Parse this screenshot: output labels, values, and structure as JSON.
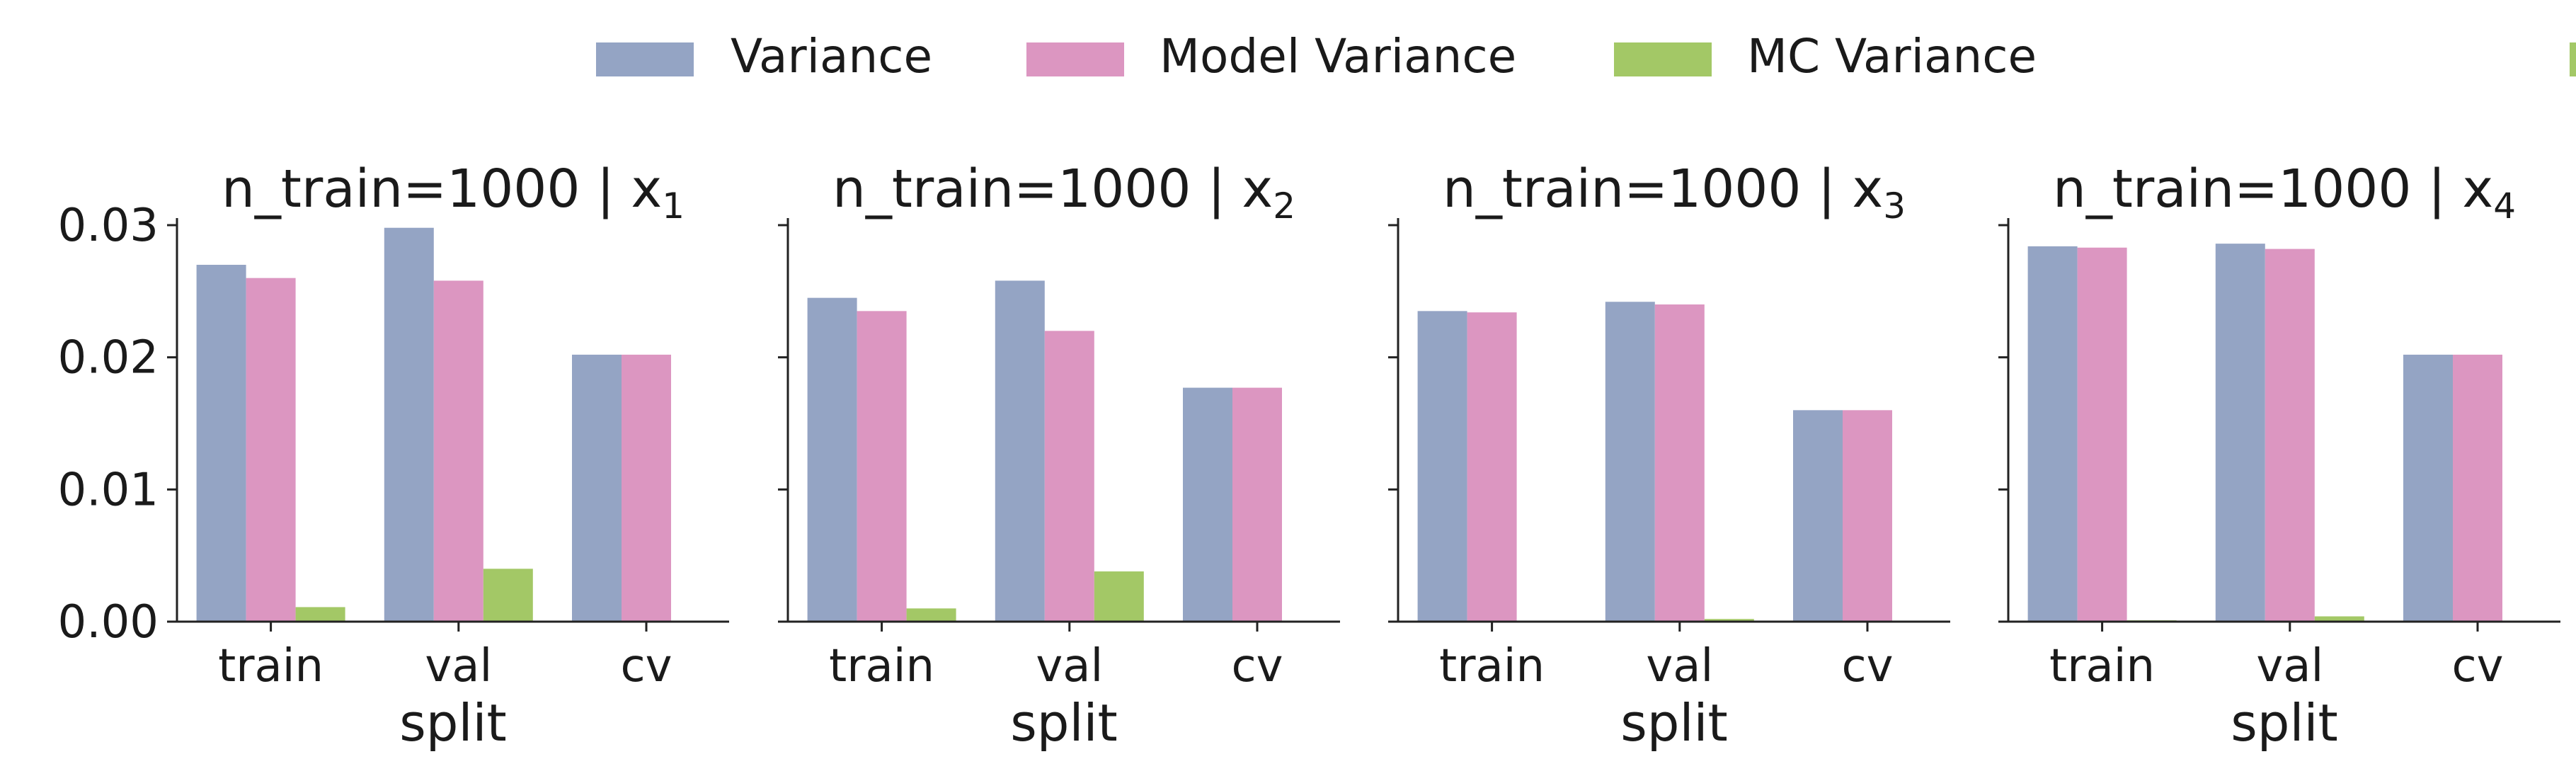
{
  "legend": {
    "placement": "top-center",
    "items": [
      {
        "label": "Variance",
        "color": "#94a4c4"
      },
      {
        "label": "Model Variance",
        "color": "#dc96c1"
      },
      {
        "label": "MC Variance",
        "color": "#a3c866"
      }
    ]
  },
  "chart_data": [
    {
      "type": "bar",
      "title": "n_train=1000 | x",
      "title_subscript": "1",
      "xlabel": "split",
      "ylabel": "",
      "categories": [
        "train",
        "val",
        "cv"
      ],
      "ylim": [
        0,
        0.031
      ],
      "yticks": [
        "0.00",
        "0.01",
        "0.02",
        "0.03"
      ],
      "grid": false,
      "series": [
        {
          "name": "Variance",
          "values": [
            0.027,
            0.0298,
            0.0202
          ]
        },
        {
          "name": "Model Variance",
          "values": [
            0.026,
            0.0258,
            0.0202
          ]
        },
        {
          "name": "MC Variance",
          "values": [
            0.0011,
            0.004,
            null
          ]
        }
      ]
    },
    {
      "type": "bar",
      "title": "n_train=1000 | x",
      "title_subscript": "2",
      "xlabel": "split",
      "ylabel": "",
      "categories": [
        "train",
        "val",
        "cv"
      ],
      "ylim": [
        0,
        0.031
      ],
      "yticks": [
        "0.00",
        "0.01",
        "0.02",
        "0.03"
      ],
      "grid": false,
      "series": [
        {
          "name": "Variance",
          "values": [
            0.0245,
            0.0258,
            0.0177
          ]
        },
        {
          "name": "Model Variance",
          "values": [
            0.0235,
            0.022,
            0.0177
          ]
        },
        {
          "name": "MC Variance",
          "values": [
            0.001,
            0.0038,
            null
          ]
        }
      ]
    },
    {
      "type": "bar",
      "title": "n_train=1000 | x",
      "title_subscript": "3",
      "xlabel": "split",
      "ylabel": "",
      "categories": [
        "train",
        "val",
        "cv"
      ],
      "ylim": [
        0,
        0.031
      ],
      "yticks": [
        "0.00",
        "0.01",
        "0.02",
        "0.03"
      ],
      "grid": false,
      "series": [
        {
          "name": "Variance",
          "values": [
            0.0235,
            0.0242,
            0.016
          ]
        },
        {
          "name": "Model Variance",
          "values": [
            0.0234,
            0.024,
            0.016
          ]
        },
        {
          "name": "MC Variance",
          "values": [
            0.0,
            0.0002,
            null
          ]
        }
      ]
    },
    {
      "type": "bar",
      "title": "n_train=1000 | x",
      "title_subscript": "4",
      "xlabel": "split",
      "ylabel": "",
      "categories": [
        "train",
        "val",
        "cv"
      ],
      "ylim": [
        0,
        0.031
      ],
      "yticks": [
        "0.00",
        "0.01",
        "0.02",
        "0.03"
      ],
      "grid": false,
      "series": [
        {
          "name": "Variance",
          "values": [
            0.0284,
            0.0286,
            0.0202
          ]
        },
        {
          "name": "Model Variance",
          "values": [
            0.0283,
            0.0282,
            0.0202
          ]
        },
        {
          "name": "MC Variance",
          "values": [
            0.0001,
            0.0004,
            null
          ]
        }
      ]
    }
  ]
}
